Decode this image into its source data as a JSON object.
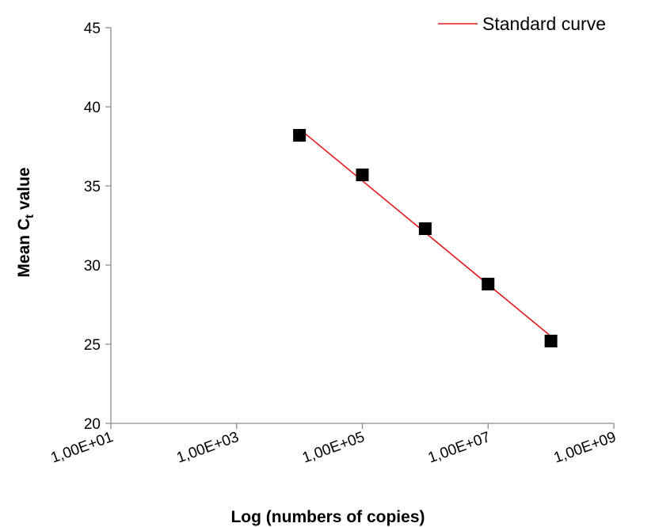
{
  "chart_data": {
    "type": "scatter",
    "title": "",
    "xlabel": "Log (numbers of copies)",
    "ylabel_main": "Mean C",
    "ylabel_sub": "t",
    "ylabel_tail": " value",
    "x_scale": "log",
    "xlim": [
      10,
      1000000000
    ],
    "ylim": [
      20,
      45
    ],
    "x_ticks": [
      10,
      1000,
      100000,
      10000000,
      1000000000
    ],
    "x_tick_labels": [
      "1,00E+01",
      "1,00E+03",
      "1,00E+05",
      "1,00E+07",
      "1,00E+09"
    ],
    "y_ticks": [
      20,
      25,
      30,
      35,
      40,
      45
    ],
    "y_tick_labels": [
      "20",
      "25",
      "30",
      "35",
      "40",
      "45"
    ],
    "grid": false,
    "legend": {
      "placement": "top-right",
      "entries": [
        "Standard curve"
      ]
    },
    "series": [
      {
        "kind": "markers",
        "marker": "square",
        "color": "#000000",
        "x": [
          10000,
          100000,
          1000000,
          10000000,
          100000000
        ],
        "y": [
          38.2,
          35.7,
          32.3,
          28.8,
          25.2
        ]
      },
      {
        "name": "Standard curve",
        "kind": "line",
        "color": "#e31a1c",
        "x": [
          10000,
          100000000
        ],
        "y": [
          38.6,
          25.5
        ]
      }
    ]
  }
}
